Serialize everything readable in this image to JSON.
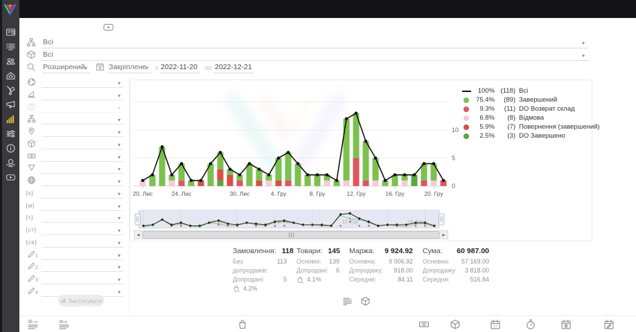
{
  "colors": {
    "sidebar_active": "#e6bd3a",
    "line": "#111111",
    "completed": "#7cc14e",
    "return_stock": "#e2555e",
    "declined": "#f3ccd3",
    "returned": "#d94f43",
    "do_completed": "#55ab3a",
    "navigator_bg": "#e4e8f3"
  },
  "sidebar": {
    "items": [
      {
        "id": "cards",
        "icon": "card-icon"
      },
      {
        "id": "orders",
        "icon": "list-icon"
      },
      {
        "id": "clients",
        "icon": "users-icon"
      },
      {
        "id": "store",
        "icon": "home-icon"
      },
      {
        "id": "delivery",
        "icon": "trolley-icon"
      },
      {
        "id": "marketing",
        "icon": "megaphone-icon"
      },
      {
        "id": "analytics",
        "icon": "chart-icon",
        "active": true
      },
      {
        "id": "settings",
        "icon": "sliders-icon"
      },
      {
        "id": "info",
        "icon": "info-icon"
      },
      {
        "id": "partners",
        "icon": "globe-hands-icon"
      },
      {
        "id": "video",
        "icon": "play-icon"
      }
    ]
  },
  "header_filters": {
    "video_button_icon": "play-icon",
    "source_filter": {
      "icon": "flow-icon",
      "value": "Всі"
    },
    "product_filter": {
      "icon": "cube-icon",
      "value": "Всі"
    },
    "search_mode": {
      "icon": "search-icon",
      "value": "Розширений"
    },
    "period_mode": {
      "icon": "calendar-pin-icon",
      "value": "Закріплене"
    },
    "date_from_label": "з",
    "date_from": "2022-11-20",
    "date_to_label": "по",
    "date_to": "2022-12-21"
  },
  "filter_panel": {
    "rows": [
      {
        "icon": "earth-icon"
      },
      {
        "icon": "protractor-icon"
      },
      {
        "icon": "help-icon",
        "disabled": true
      },
      {
        "icon": "sitemap-icon"
      },
      {
        "icon": "pin-icon"
      },
      {
        "icon": "cube-icon"
      },
      {
        "icon": "banknote-icon"
      },
      {
        "icon": "funnel-icon"
      },
      {
        "icon": "globe-icon"
      },
      {
        "text": "{s}"
      },
      {
        "text": "{м}"
      },
      {
        "text": "{т}"
      },
      {
        "text": "{ст}"
      },
      {
        "text": "{св}"
      },
      {
        "icon": "pencil-icon",
        "num": "1"
      },
      {
        "icon": "pencil-icon",
        "num": "2"
      },
      {
        "icon": "pencil-icon",
        "num": "3"
      },
      {
        "icon": "pencil-icon",
        "num": "4"
      }
    ],
    "apply_button": {
      "label": "Застосувати",
      "icon": "chart-icon"
    }
  },
  "chart_data": {
    "type": "bar",
    "subtype": "stacked-bars-with-total-line",
    "x_dates": [
      "2022-11-20",
      "2022-11-21",
      "2022-11-22",
      "2022-11-23",
      "2022-11-24",
      "2022-11-25",
      "2022-11-26",
      "2022-11-27",
      "2022-11-28",
      "2022-11-29",
      "2022-11-30",
      "2022-12-01",
      "2022-12-02",
      "2022-12-03",
      "2022-12-04",
      "2022-12-05",
      "2022-12-06",
      "2022-12-07",
      "2022-12-08",
      "2022-12-09",
      "2022-12-10",
      "2022-12-11",
      "2022-12-12",
      "2022-12-13",
      "2022-12-14",
      "2022-12-15",
      "2022-12-16",
      "2022-12-17",
      "2022-12-18",
      "2022-12-19",
      "2022-12-20",
      "2022-12-21"
    ],
    "ticks": [
      {
        "day": 0,
        "label": "20. Лис"
      },
      {
        "day": 4,
        "label": "24. Лис"
      },
      {
        "day": 10,
        "label": "30. Лис"
      },
      {
        "day": 14,
        "label": "4. Гру"
      },
      {
        "day": 18,
        "label": "8. Гру"
      },
      {
        "day": 22,
        "label": "12. Гру"
      },
      {
        "day": 26,
        "label": "16. Гру"
      },
      {
        "day": 30,
        "label": "20. Гру"
      }
    ],
    "yticks": [
      "0",
      "5",
      "10"
    ],
    "ylim": [
      0,
      15
    ],
    "grid": "horizontal",
    "legend_position": "right",
    "series": [
      {
        "name": "Всі",
        "type": "line",
        "color": "#111111",
        "values": [
          1,
          2,
          7,
          2,
          4,
          1,
          1,
          4,
          6,
          3,
          2,
          4,
          3,
          2,
          5,
          6,
          4,
          2,
          2,
          2,
          1,
          12,
          13,
          8,
          5,
          1,
          2,
          2,
          2,
          4,
          4,
          1
        ]
      },
      {
        "name": "Завершений",
        "type": "bar",
        "color": "#7cc14e",
        "values": [
          0,
          2,
          7,
          1,
          3,
          1,
          0,
          4,
          3,
          1,
          1,
          4,
          2,
          1,
          4,
          5,
          4,
          2,
          2,
          1,
          1,
          11,
          8,
          7,
          4,
          1,
          2,
          1,
          0,
          3,
          3,
          0
        ]
      },
      {
        "name": "DO Возврат склад",
        "type": "bar",
        "color": "#e2555e",
        "values": [
          0,
          0,
          0,
          0,
          1,
          0,
          0,
          0,
          0,
          0,
          1,
          0,
          0,
          0,
          0,
          1,
          0,
          0,
          0,
          0,
          0,
          0,
          5,
          1,
          0,
          0,
          0,
          0,
          0,
          1,
          0,
          1
        ]
      },
      {
        "name": "Відмова",
        "type": "bar",
        "color": "#f3ccd3",
        "values": [
          1,
          0,
          0,
          1,
          0,
          0,
          0,
          0,
          0,
          0,
          0,
          0,
          0,
          1,
          0,
          0,
          0,
          0,
          0,
          1,
          0,
          1,
          0,
          0,
          1,
          0,
          0,
          1,
          0,
          0,
          1,
          0
        ]
      },
      {
        "name": "Повернення (завершений)",
        "type": "bar",
        "color": "#d94f43",
        "values": [
          0,
          0,
          0,
          0,
          0,
          0,
          1,
          0,
          2,
          2,
          0,
          0,
          1,
          0,
          1,
          0,
          0,
          0,
          0,
          0,
          0,
          0,
          0,
          0,
          0,
          0,
          0,
          0,
          0,
          0,
          0,
          0
        ]
      },
      {
        "name": "DO Завершено",
        "type": "bar",
        "color": "#55ab3a",
        "values": [
          0,
          0,
          0,
          0,
          0,
          0,
          0,
          0,
          1,
          0,
          0,
          0,
          0,
          0,
          0,
          0,
          0,
          0,
          0,
          0,
          0,
          0,
          0,
          0,
          0,
          0,
          0,
          0,
          2,
          0,
          0,
          0
        ]
      }
    ],
    "stack_order_bottom_to_top": [
      "DO Завершено",
      "Повернення (завершений)",
      "Відмова",
      "DO Возврат склад",
      "Завершений"
    ],
    "legend": [
      {
        "marker": "line",
        "color": "#111111",
        "pct": "100%",
        "count": "(118)",
        "label": "Всі"
      },
      {
        "marker": "circle",
        "color": "#7cc14e",
        "pct": "75.4%",
        "count": "(89)",
        "label": "Завершений"
      },
      {
        "marker": "circle",
        "color": "#e2555e",
        "pct": "9.3%",
        "count": "(11)",
        "label": "DO Возврат склад"
      },
      {
        "marker": "circle",
        "color": "#f3ccd3",
        "pct": "6.8%",
        "count": "(8)",
        "label": "Відмова"
      },
      {
        "marker": "circle",
        "color": "#d94f43",
        "pct": "5.9%",
        "count": "(7)",
        "label": "Повернення (завершений)"
      },
      {
        "marker": "circle",
        "color": "#55ab3a",
        "pct": "2.5%",
        "count": "(3)",
        "label": "DO Завершено"
      }
    ],
    "navigator": {
      "labels": [
        {
          "day": 8,
          "label": "28. Лис"
        },
        {
          "day": 15,
          "label": "5. Гру"
        },
        {
          "day": 22,
          "label": "12. Гру"
        },
        {
          "day": 29,
          "label": "19. Гру"
        }
      ]
    }
  },
  "stats": {
    "columns": [
      {
        "title": "Замовлення:",
        "value": "118",
        "rows": [
          {
            "label": "Без допродажів:",
            "value": "113"
          },
          {
            "label": "Допродані:",
            "value": "5"
          },
          {
            "icon": "bag-s-icon",
            "value": "4.2%"
          }
        ]
      },
      {
        "title": "Товари:",
        "value": "145",
        "rows": [
          {
            "label": "Основні:",
            "value": "139"
          },
          {
            "label": "Допродані:",
            "value": "6"
          },
          {
            "icon": "bag-s-icon",
            "value": "4.1%"
          }
        ]
      },
      {
        "title": "Маржа:",
        "value": "9 924.92",
        "rows": [
          {
            "label": "Основна:",
            "value": "9 006.92"
          },
          {
            "label": "Допродажу:",
            "value": "918.00"
          },
          {
            "label": "Середня:",
            "value": "84.11"
          }
        ]
      },
      {
        "title": "Сума:",
        "value": "60 987.00",
        "rows": [
          {
            "label": "Основна:",
            "value": "57 169.00"
          },
          {
            "label": "Допродажу:",
            "value": "3 818.00"
          },
          {
            "label": "Середня:",
            "value": "516.84"
          }
        ]
      }
    ]
  },
  "view_toggles": [
    {
      "id": "list",
      "icon": "list-indent-icon"
    },
    {
      "id": "products",
      "icon": "cube-icon"
    }
  ],
  "table_header": {
    "icons": [
      "id-lines-icon",
      "id-o-lines-icon",
      "bag-icon",
      "banknote-icon",
      "cube-icon",
      "calendar-17-icon",
      "stopwatch-icon",
      "calendar-sum-icon",
      "calendar-edit-icon"
    ]
  }
}
